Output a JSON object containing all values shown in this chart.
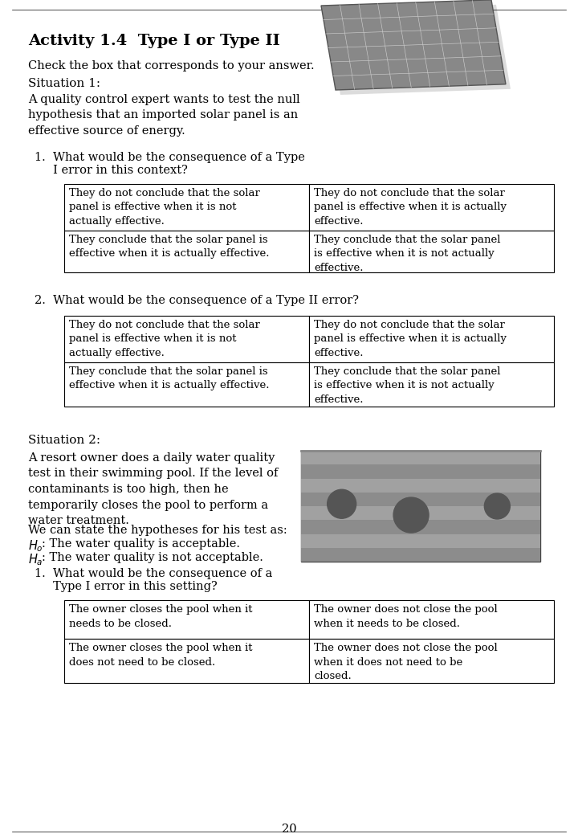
{
  "title": "Activity 1.4  Type I or Type II",
  "subtitle": "Check the box that corresponds to your answer.",
  "situation1_label": "Situation 1:",
  "situation1_text": "A quality control expert wants to test the null\nhypothesis that an imported solar panel is an\neffective source of energy.",
  "q1_text": "1.  What would be the consequence of a Type\n     I error in this context?",
  "q1_table": [
    [
      "They do not conclude that the solar\npanel is effective when it is not\nactually effective.",
      "They do not conclude that the solar\npanel is effective when it is actually\neffective."
    ],
    [
      "They conclude that the solar panel is\neffective when it is actually effective.",
      "They conclude that the solar panel\nis effective when it is not actually\neffective."
    ]
  ],
  "q2_text": "2.  What would be the consequence of a Type II error?",
  "q2_table": [
    [
      "They do not conclude that the solar\npanel is effective when it is not\nactually effective.",
      "They do not conclude that the solar\npanel is effective when it is actually\neffective."
    ],
    [
      "They conclude that the solar panel is\neffective when it is actually effective.",
      "They conclude that the solar panel\nis effective when it is not actually\neffective."
    ]
  ],
  "situation2_label": "Situation 2:",
  "situation2_text": "A resort owner does a daily water quality\ntest in their swimming pool. If the level of\ncontaminants is too high, then he\ntemporarily closes the pool to perform a\nwater treatment.",
  "hyp_intro": "We can state the hypotheses for his test as:",
  "hyp_h0": ": The water quality is acceptable.",
  "hyp_ha": ": The water quality is not acceptable.",
  "q3_text": "1.  What would be the consequence of a\n     Type I error in this setting?",
  "q3_table": [
    [
      "The owner closes the pool when it\nneeds to be closed.",
      "The owner does not close the pool\nwhen it needs to be closed."
    ],
    [
      "The owner closes the pool when it\ndoes not need to be closed.",
      "The owner does not close the pool\nwhen it does not need to be\nclosed."
    ]
  ],
  "page_number": "20",
  "bg_color": "#ffffff",
  "text_color": "#000000"
}
